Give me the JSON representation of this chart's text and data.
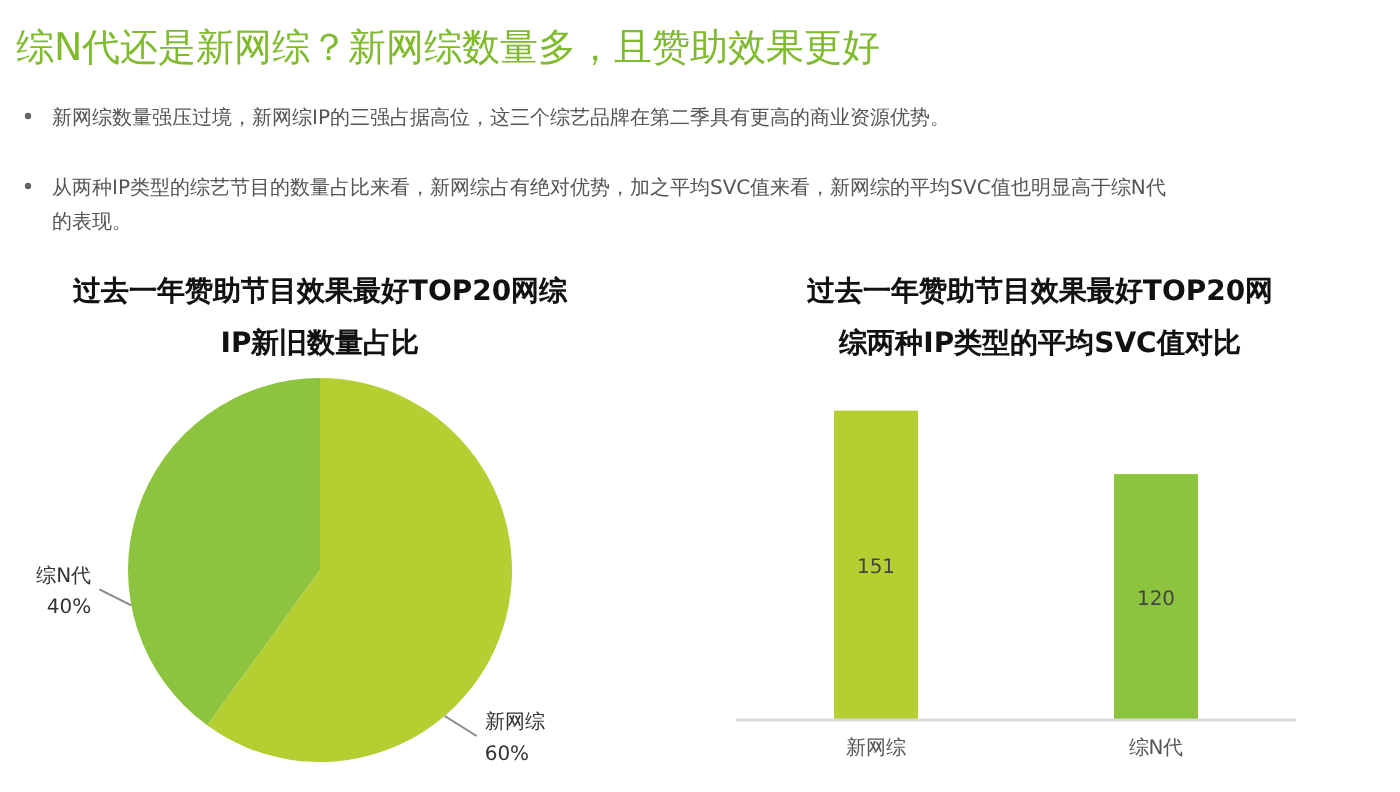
{
  "chart_data": [
    {
      "type": "other",
      "title": "综N代还是新网综？新网综数量多，且赞助效果更好",
      "annotations": [
        "新网综数量强压过境，新网综IP的三强占据高位，这三个综艺品牌在第二季具有更高的商业资源优势。",
        "从两种IP类型的综艺节目的数量占比来看，新网综占有绝对优势，加之平均SVC值来看，新网综的平均SVC值也明显高于综N代的表现。"
      ]
    },
    {
      "type": "pie",
      "title": "过去一年赞助节目效果最好TOP20网综IP新旧数量占比",
      "categories": [
        "新网综",
        "综N代"
      ],
      "values": [
        60,
        40
      ],
      "colors": [
        "#b5cf32",
        "#8cc43f"
      ],
      "value_labels": [
        "60%",
        "40%"
      ]
    },
    {
      "type": "bar",
      "title": "过去一年赞助节目效果最好TOP20网综两种IP类型的平均SVC值对比",
      "categories": [
        "新网综",
        "综N代"
      ],
      "values": [
        151,
        120
      ],
      "colors": [
        "#b5cf32",
        "#8cc43f"
      ],
      "data_labels": true,
      "tick_labels": "x"
    }
  ]
}
